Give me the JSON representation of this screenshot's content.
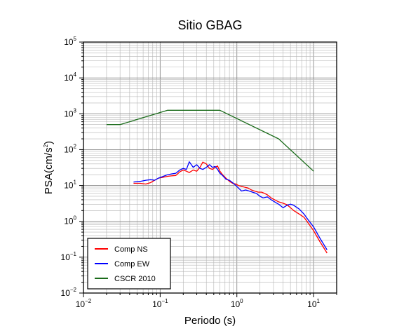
{
  "chart_data": {
    "type": "line",
    "title": "Sitio GBAG",
    "xlabel": "Periodo (s)",
    "ylabel_main": "PSA(cm/s",
    "ylabel_sup": "2",
    "ylabel_end": ")",
    "x_scale": "log",
    "y_scale": "log",
    "xlim": [
      0.01,
      20
    ],
    "ylim": [
      0.01,
      100000
    ],
    "grid": true,
    "legend_position": "bottom-left",
    "x_ticks": [
      {
        "base": "10",
        "exp": "−2",
        "value": 0.01
      },
      {
        "base": "10",
        "exp": "−1",
        "value": 0.1
      },
      {
        "base": "10",
        "exp": "0",
        "value": 1
      },
      {
        "base": "10",
        "exp": "1",
        "value": 10
      }
    ],
    "y_ticks": [
      {
        "base": "10",
        "exp": "−2",
        "value": 0.01
      },
      {
        "base": "10",
        "exp": "−1",
        "value": 0.1
      },
      {
        "base": "10",
        "exp": "0",
        "value": 1
      },
      {
        "base": "10",
        "exp": "1",
        "value": 10
      },
      {
        "base": "10",
        "exp": "2",
        "value": 100
      },
      {
        "base": "10",
        "exp": "3",
        "value": 1000
      },
      {
        "base": "10",
        "exp": "4",
        "value": 10000
      },
      {
        "base": "10",
        "exp": "5",
        "value": 100000
      }
    ],
    "series": [
      {
        "name": "Comp NS",
        "color": "#ff0000",
        "points": [
          [
            0.045,
            11.5
          ],
          [
            0.055,
            11.5
          ],
          [
            0.065,
            11.0
          ],
          [
            0.075,
            12.0
          ],
          [
            0.085,
            14.0
          ],
          [
            0.095,
            16.0
          ],
          [
            0.11,
            17.0
          ],
          [
            0.125,
            18.0
          ],
          [
            0.14,
            18.5
          ],
          [
            0.16,
            19.0
          ],
          [
            0.18,
            24.0
          ],
          [
            0.2,
            27.0
          ],
          [
            0.22,
            25.0
          ],
          [
            0.24,
            23.0
          ],
          [
            0.27,
            27.0
          ],
          [
            0.3,
            25.0
          ],
          [
            0.33,
            32.0
          ],
          [
            0.36,
            45.0
          ],
          [
            0.4,
            40.0
          ],
          [
            0.44,
            30.0
          ],
          [
            0.48,
            28.0
          ],
          [
            0.52,
            32.0
          ],
          [
            0.56,
            35.0
          ],
          [
            0.6,
            25.0
          ],
          [
            0.65,
            20.0
          ],
          [
            0.72,
            16.0
          ],
          [
            0.8,
            13.0
          ],
          [
            0.88,
            11.5
          ],
          [
            0.97,
            11.0
          ],
          [
            1.05,
            10.0
          ],
          [
            1.15,
            9.5
          ],
          [
            1.25,
            9.0
          ],
          [
            1.4,
            8.5
          ],
          [
            1.55,
            7.5
          ],
          [
            1.7,
            7.0
          ],
          [
            1.9,
            6.5
          ],
          [
            2.1,
            6.5
          ],
          [
            2.3,
            6.0
          ],
          [
            2.5,
            5.5
          ],
          [
            2.8,
            4.5
          ],
          [
            3.1,
            4.0
          ],
          [
            3.5,
            3.5
          ],
          [
            4.0,
            3.2
          ],
          [
            4.5,
            2.9
          ],
          [
            5.0,
            2.4
          ],
          [
            5.5,
            2.0
          ],
          [
            6.5,
            1.6
          ],
          [
            7.5,
            1.3
          ],
          [
            8.5,
            0.9
          ],
          [
            10.0,
            0.55
          ],
          [
            12.0,
            0.28
          ],
          [
            15.0,
            0.13
          ]
        ]
      },
      {
        "name": "Comp EW",
        "color": "#0000ff",
        "points": [
          [
            0.045,
            12.5
          ],
          [
            0.055,
            13.0
          ],
          [
            0.065,
            14.0
          ],
          [
            0.075,
            14.5
          ],
          [
            0.085,
            14.0
          ],
          [
            0.095,
            16.0
          ],
          [
            0.11,
            18.0
          ],
          [
            0.125,
            20.0
          ],
          [
            0.14,
            21.0
          ],
          [
            0.16,
            22.0
          ],
          [
            0.18,
            27.0
          ],
          [
            0.2,
            30.0
          ],
          [
            0.22,
            28.0
          ],
          [
            0.24,
            46.0
          ],
          [
            0.27,
            32.0
          ],
          [
            0.3,
            38.0
          ],
          [
            0.33,
            30.0
          ],
          [
            0.36,
            28.0
          ],
          [
            0.4,
            32.0
          ],
          [
            0.44,
            38.0
          ],
          [
            0.48,
            32.0
          ],
          [
            0.52,
            34.0
          ],
          [
            0.56,
            28.0
          ],
          [
            0.6,
            22.0
          ],
          [
            0.65,
            19.0
          ],
          [
            0.72,
            15.0
          ],
          [
            0.8,
            14.0
          ],
          [
            0.88,
            12.0
          ],
          [
            0.97,
            10.0
          ],
          [
            1.05,
            8.5
          ],
          [
            1.15,
            7.0
          ],
          [
            1.3,
            7.5
          ],
          [
            1.45,
            7.0
          ],
          [
            1.6,
            6.5
          ],
          [
            1.8,
            6.0
          ],
          [
            2.0,
            5.0
          ],
          [
            2.2,
            4.5
          ],
          [
            2.5,
            4.8
          ],
          [
            2.8,
            4.0
          ],
          [
            3.1,
            3.5
          ],
          [
            3.5,
            3.0
          ],
          [
            4.0,
            2.4
          ],
          [
            4.5,
            2.8
          ],
          [
            5.0,
            3.0
          ],
          [
            5.5,
            2.8
          ],
          [
            6.5,
            2.2
          ],
          [
            7.5,
            1.6
          ],
          [
            8.5,
            1.1
          ],
          [
            10.0,
            0.7
          ],
          [
            12.0,
            0.35
          ],
          [
            15.0,
            0.16
          ]
        ]
      },
      {
        "name": "CSCR 2010",
        "color": "#1a6b1a",
        "points": [
          [
            0.02,
            500
          ],
          [
            0.03,
            500
          ],
          [
            0.125,
            1250
          ],
          [
            0.6,
            1250
          ],
          [
            3.5,
            200
          ],
          [
            10.0,
            25
          ]
        ]
      }
    ]
  }
}
